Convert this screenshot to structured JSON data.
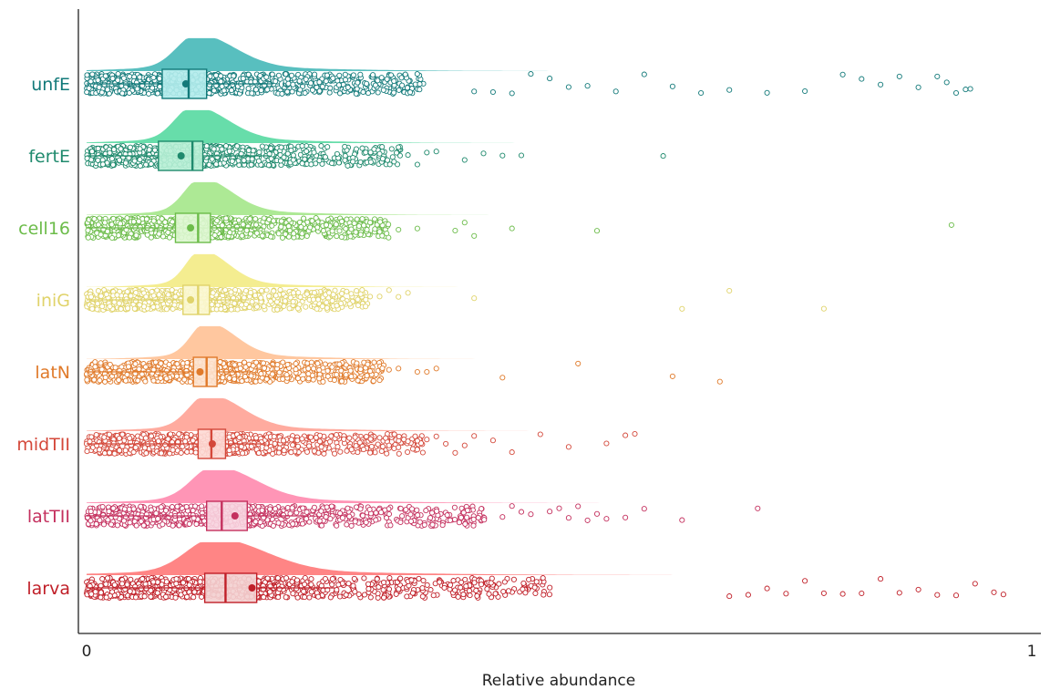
{
  "chart_data": {
    "type": "raincloud",
    "xlabel": "Relative abundance",
    "ylabel": "",
    "xlim": [
      0,
      1
    ],
    "x_ticks": [
      "0",
      "1"
    ],
    "grid": false,
    "legend": "none",
    "categories": [
      {
        "name": "unfE",
        "color": "#137a7a",
        "fill": "#4fbcbc",
        "box_fill": "#b2ecec",
        "q1": 0.08,
        "median": 0.108,
        "q3": 0.127,
        "mean": 0.105,
        "mode": 0.117,
        "spread": 0.055,
        "outliers": [
          0.41,
          0.43,
          0.45,
          0.47,
          0.49,
          0.51,
          0.53,
          0.56,
          0.59,
          0.62,
          0.65,
          0.68,
          0.72,
          0.76,
          0.8,
          0.82,
          0.84,
          0.86,
          0.88,
          0.9,
          0.91,
          0.92,
          0.93,
          0.935
        ]
      },
      {
        "name": "fertE",
        "color": "#1f8a6d",
        "fill": "#5fdba5",
        "box_fill": "#b6efd5",
        "q1": 0.076,
        "median": 0.112,
        "q3": 0.123,
        "mean": 0.1,
        "mode": 0.113,
        "spread": 0.05,
        "outliers": [
          0.33,
          0.34,
          0.35,
          0.36,
          0.37,
          0.4,
          0.42,
          0.44,
          0.46,
          0.61
        ]
      },
      {
        "name": "cell16",
        "color": "#6cbc4a",
        "fill": "#a9e88f",
        "box_fill": "#dcf6cf",
        "q1": 0.094,
        "median": 0.118,
        "q3": 0.131,
        "mean": 0.11,
        "mode": 0.121,
        "spread": 0.045,
        "outliers": [
          0.26,
          0.27,
          0.28,
          0.29,
          0.3,
          0.31,
          0.33,
          0.35,
          0.39,
          0.4,
          0.41,
          0.45,
          0.54,
          0.915
        ]
      },
      {
        "name": "iniG",
        "color": "#e0d36a",
        "fill": "#f3ec8a",
        "box_fill": "#fbf7d0",
        "q1": 0.102,
        "median": 0.118,
        "q3": 0.13,
        "mean": 0.11,
        "mode": 0.121,
        "spread": 0.04,
        "outliers": [
          0.24,
          0.26,
          0.27,
          0.28,
          0.29,
          0.3,
          0.31,
          0.32,
          0.33,
          0.34,
          0.41,
          0.63,
          0.68,
          0.78
        ]
      },
      {
        "name": "latN",
        "color": "#e07a2a",
        "fill": "#ffc49a",
        "box_fill": "#fde3cf",
        "q1": 0.113,
        "median": 0.127,
        "q3": 0.138,
        "mean": 0.12,
        "mode": 0.127,
        "spread": 0.042,
        "outliers": [
          0.27,
          0.28,
          0.29,
          0.3,
          0.31,
          0.32,
          0.33,
          0.35,
          0.36,
          0.37,
          0.44,
          0.52,
          0.62,
          0.67
        ]
      },
      {
        "name": "midTII",
        "color": "#d4483a",
        "fill": "#ffa69a",
        "box_fill": "#fdd9d4",
        "q1": 0.118,
        "median": 0.132,
        "q3": 0.147,
        "mean": 0.133,
        "mode": 0.128,
        "spread": 0.05,
        "outliers": [
          0.3,
          0.31,
          0.32,
          0.33,
          0.34,
          0.35,
          0.36,
          0.37,
          0.38,
          0.39,
          0.4,
          0.41,
          0.43,
          0.45,
          0.48,
          0.51,
          0.55,
          0.57,
          0.58
        ]
      },
      {
        "name": "latTII",
        "color": "#c4305e",
        "fill": "#ff8fb2",
        "box_fill": "#f7d2de",
        "q1": 0.127,
        "median": 0.143,
        "q3": 0.17,
        "mean": 0.157,
        "mode": 0.135,
        "spread": 0.06,
        "outliers": [
          0.44,
          0.45,
          0.46,
          0.47,
          0.49,
          0.5,
          0.51,
          0.52,
          0.53,
          0.54,
          0.55,
          0.57,
          0.59,
          0.63,
          0.71
        ]
      },
      {
        "name": "larva",
        "color": "#c01f28",
        "fill": "#ff7e7e",
        "box_fill": "#f3d0d0",
        "q1": 0.125,
        "median": 0.147,
        "q3": 0.18,
        "mean": 0.175,
        "mode": 0.135,
        "spread": 0.075,
        "outliers": [
          0.68,
          0.7,
          0.72,
          0.74,
          0.76,
          0.78,
          0.8,
          0.82,
          0.84,
          0.86,
          0.88,
          0.9,
          0.92,
          0.94,
          0.96,
          0.97
        ]
      }
    ]
  }
}
